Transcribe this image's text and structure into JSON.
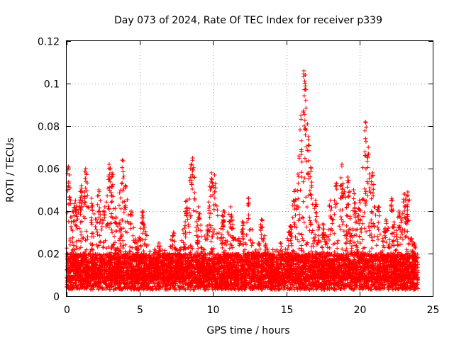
{
  "chart_data": {
    "type": "scatter",
    "title": "Day 073 of 2024, Rate Of TEC Index for receiver p339",
    "xlabel": "GPS time / hours",
    "ylabel": "ROTI / TECUs",
    "xlim": [
      0,
      25
    ],
    "ylim": [
      0,
      0.12
    ],
    "xticks": [
      0,
      5,
      10,
      15,
      20,
      25
    ],
    "xtick_labels": [
      "0",
      "5",
      "10",
      "15",
      "20",
      "25"
    ],
    "yticks": [
      0,
      0.02,
      0.04,
      0.06,
      0.08,
      0.1,
      0.12
    ],
    "ytick_labels": [
      "0",
      "0.02",
      "0.04",
      "0.06",
      "0.08",
      "0.1",
      "0.12"
    ],
    "grid": true,
    "marker": "+",
    "series": [
      {
        "name": "ROTI",
        "color": "#ff0000",
        "x_range": [
          0,
          24
        ],
        "base_range": [
          0.003,
          0.02
        ],
        "peaks": [
          {
            "x": 0.1,
            "y": 0.061
          },
          {
            "x": 0.2,
            "y": 0.057
          },
          {
            "x": 0.6,
            "y": 0.045
          },
          {
            "x": 1.0,
            "y": 0.052
          },
          {
            "x": 1.3,
            "y": 0.06
          },
          {
            "x": 1.7,
            "y": 0.046
          },
          {
            "x": 2.2,
            "y": 0.05
          },
          {
            "x": 2.6,
            "y": 0.042
          },
          {
            "x": 2.9,
            "y": 0.062
          },
          {
            "x": 3.1,
            "y": 0.058
          },
          {
            "x": 3.8,
            "y": 0.064
          },
          {
            "x": 4.0,
            "y": 0.052
          },
          {
            "x": 4.4,
            "y": 0.04
          },
          {
            "x": 5.2,
            "y": 0.04
          },
          {
            "x": 6.3,
            "y": 0.025
          },
          {
            "x": 7.3,
            "y": 0.03
          },
          {
            "x": 8.2,
            "y": 0.045
          },
          {
            "x": 8.5,
            "y": 0.062
          },
          {
            "x": 8.6,
            "y": 0.065
          },
          {
            "x": 9.0,
            "y": 0.042
          },
          {
            "x": 9.6,
            "y": 0.033
          },
          {
            "x": 9.9,
            "y": 0.058
          },
          {
            "x": 10.1,
            "y": 0.057
          },
          {
            "x": 10.7,
            "y": 0.04
          },
          {
            "x": 11.2,
            "y": 0.042
          },
          {
            "x": 12.0,
            "y": 0.035
          },
          {
            "x": 12.4,
            "y": 0.046
          },
          {
            "x": 13.3,
            "y": 0.036
          },
          {
            "x": 14.6,
            "y": 0.025
          },
          {
            "x": 15.3,
            "y": 0.033
          },
          {
            "x": 15.6,
            "y": 0.05
          },
          {
            "x": 16.0,
            "y": 0.085
          },
          {
            "x": 16.2,
            "y": 0.106
          },
          {
            "x": 16.3,
            "y": 0.104
          },
          {
            "x": 16.5,
            "y": 0.075
          },
          {
            "x": 16.7,
            "y": 0.06
          },
          {
            "x": 17.0,
            "y": 0.045
          },
          {
            "x": 17.5,
            "y": 0.034
          },
          {
            "x": 18.0,
            "y": 0.045
          },
          {
            "x": 18.4,
            "y": 0.053
          },
          {
            "x": 18.8,
            "y": 0.062
          },
          {
            "x": 19.2,
            "y": 0.056
          },
          {
            "x": 19.6,
            "y": 0.05
          },
          {
            "x": 20.0,
            "y": 0.045
          },
          {
            "x": 20.4,
            "y": 0.082
          },
          {
            "x": 20.6,
            "y": 0.07
          },
          {
            "x": 20.9,
            "y": 0.058
          },
          {
            "x": 21.3,
            "y": 0.042
          },
          {
            "x": 21.8,
            "y": 0.036
          },
          {
            "x": 22.2,
            "y": 0.046
          },
          {
            "x": 22.7,
            "y": 0.04
          },
          {
            "x": 23.1,
            "y": 0.048
          },
          {
            "x": 23.3,
            "y": 0.049
          },
          {
            "x": 23.7,
            "y": 0.025
          }
        ]
      }
    ]
  }
}
